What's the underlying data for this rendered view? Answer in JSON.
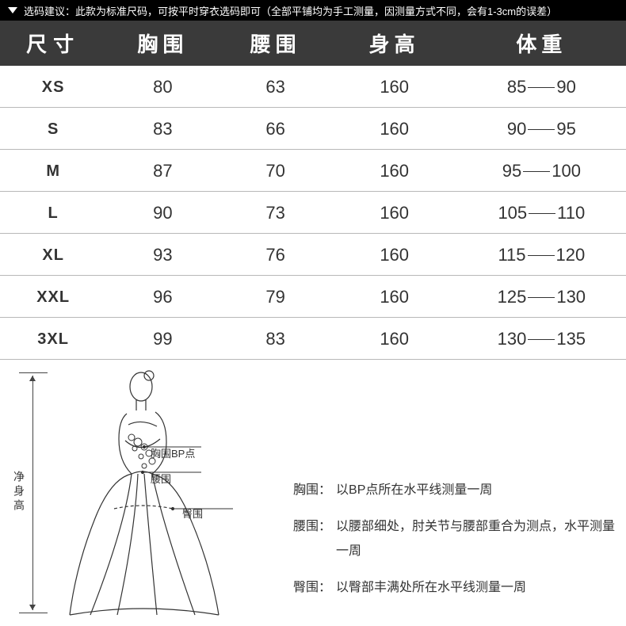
{
  "top_bar": {
    "text": "选码建议：此款为标准尺码，可按平时穿衣选码即可（全部平铺均为手工测量，因测量方式不同，会有1-3cm的误差）"
  },
  "table": {
    "columns": [
      "尺寸",
      "胸围",
      "腰围",
      "身高",
      "体重"
    ],
    "rows": [
      {
        "size": "XS",
        "bust": "80",
        "waist": "63",
        "height": "160",
        "weight_from": "85",
        "weight_to": "90"
      },
      {
        "size": "S",
        "bust": "83",
        "waist": "66",
        "height": "160",
        "weight_from": "90",
        "weight_to": "95"
      },
      {
        "size": "M",
        "bust": "87",
        "waist": "70",
        "height": "160",
        "weight_from": "95",
        "weight_to": "100"
      },
      {
        "size": "L",
        "bust": "90",
        "waist": "73",
        "height": "160",
        "weight_from": "105",
        "weight_to": "110"
      },
      {
        "size": "XL",
        "bust": "93",
        "waist": "76",
        "height": "160",
        "weight_from": "115",
        "weight_to": "120"
      },
      {
        "size": "XXL",
        "bust": "96",
        "waist": "79",
        "height": "160",
        "weight_from": "125",
        "weight_to": "130"
      },
      {
        "size": "3XL",
        "bust": "99",
        "waist": "83",
        "height": "160",
        "weight_from": "130",
        "weight_to": "135"
      }
    ],
    "header_bg": "#3a3a3a",
    "header_fg": "#ffffff",
    "row_border": "#b8b8b8",
    "cell_fontsize": 22,
    "header_fontsize": 26
  },
  "figure": {
    "height_label": "净身高",
    "callout_bp": "胸围BP点",
    "callout_waist": "腰围",
    "callout_hip": "臀围",
    "stroke": "#333333"
  },
  "notes": {
    "bust_label": "胸围：",
    "bust_text": "以BP点所在水平线测量一周",
    "waist_label": "腰围：",
    "waist_text": "以腰部细处，肘关节与腰部重合为测点，水平测量一周",
    "hip_label": "臀围：",
    "hip_text": "以臀部丰满处所在水平线测量一周"
  }
}
